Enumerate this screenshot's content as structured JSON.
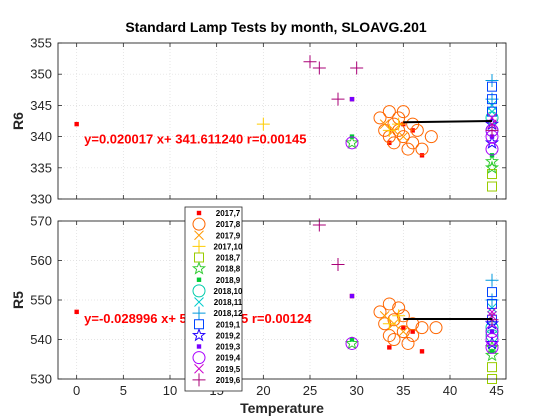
{
  "chart_data": [
    {
      "type": "scatter",
      "title": "Standard Lamp Tests by month, SLOAVG.201",
      "ylabel": "R6",
      "xlabel": "",
      "xlim": [
        -2,
        46
      ],
      "ylim": [
        330,
        355
      ],
      "xticks": [],
      "yticks": [
        "330",
        "335",
        "340",
        "345",
        "350",
        "355"
      ],
      "grid": true,
      "annotation": "y=0.020017 x+ 341.611240 r=0.00145",
      "fit_line": {
        "x": [
          35,
          44.5
        ],
        "y": [
          342.3,
          342.5
        ]
      },
      "series": [
        {
          "name": "2017,7",
          "x": [
            0,
            29.5,
            33.5,
            35,
            36,
            37
          ],
          "y": [
            342,
            346,
            339,
            342,
            341,
            337
          ]
        },
        {
          "name": "2017,8",
          "x": [
            32.5,
            33,
            33.5,
            33.5,
            34,
            34,
            34.5,
            34.5,
            35,
            35,
            35.5,
            36,
            36,
            36.5,
            37,
            38
          ],
          "y": [
            343,
            341,
            340,
            344,
            342,
            339,
            343,
            341,
            340,
            344,
            338,
            342,
            339,
            341,
            338,
            340
          ]
        },
        {
          "name": "2017,9",
          "x": [
            33,
            34,
            35
          ],
          "y": [
            342,
            341,
            340
          ]
        },
        {
          "name": "2017,10",
          "x": [
            20,
            33.5,
            34.5
          ],
          "y": [
            342,
            341,
            342
          ]
        },
        {
          "name": "2018,7",
          "x": [
            44.5,
            44.5
          ],
          "y": [
            332,
            334
          ]
        },
        {
          "name": "2018,8",
          "x": [
            29.5,
            44.5,
            44.5
          ],
          "y": [
            339,
            335,
            336
          ]
        },
        {
          "name": "2018,9",
          "x": [
            29.5,
            44.5
          ],
          "y": [
            340,
            337
          ]
        },
        {
          "name": "2018,10",
          "x": [
            44.5,
            44.5
          ],
          "y": [
            341,
            343
          ]
        },
        {
          "name": "2018,11",
          "x": [
            44.5,
            44.5
          ],
          "y": [
            344,
            345
          ]
        },
        {
          "name": "2018,12",
          "x": [
            44.5,
            44.5
          ],
          "y": [
            346,
            349
          ]
        },
        {
          "name": "2019,1",
          "x": [
            44.5,
            44.5,
            44.5
          ],
          "y": [
            344,
            346,
            348
          ]
        },
        {
          "name": "2019,2",
          "x": [
            44.5,
            44.5
          ],
          "y": [
            342,
            339
          ]
        },
        {
          "name": "2019,3",
          "x": [
            29.5,
            44.5
          ],
          "y": [
            346,
            340
          ]
        },
        {
          "name": "2019,4",
          "x": [
            29.5,
            44.5,
            44.5,
            44.5
          ],
          "y": [
            339,
            338,
            341,
            340
          ]
        },
        {
          "name": "2019,5",
          "x": [
            44.5,
            44.5
          ],
          "y": [
            342,
            343
          ]
        },
        {
          "name": "2019,6",
          "x": [
            25,
            26,
            28,
            30,
            44.5
          ],
          "y": [
            352,
            351,
            346,
            351,
            341
          ]
        }
      ]
    },
    {
      "type": "scatter",
      "title": "",
      "ylabel": "R5",
      "xlabel": "Temperature",
      "xlim": [
        -2,
        46
      ],
      "ylim": [
        530,
        570
      ],
      "xticks": [
        "0",
        "5",
        "10",
        "15",
        "20",
        "25",
        "30",
        "35",
        "40",
        "45"
      ],
      "yticks": [
        "530",
        "540",
        "550",
        "560",
        "570"
      ],
      "grid": true,
      "annotation": "y=-0.028996 x+ 545.697685 r=0.00124",
      "fit_line": {
        "x": [
          35,
          44.5
        ],
        "y": [
          545.2,
          545.2
        ]
      },
      "series": [
        {
          "name": "2017,7",
          "x": [
            0,
            29.5,
            33.5,
            35,
            36,
            37
          ],
          "y": [
            547,
            551,
            538,
            543,
            542,
            537
          ]
        },
        {
          "name": "2017,8",
          "x": [
            32.5,
            33,
            33.5,
            33.5,
            34,
            34,
            34.5,
            35,
            35,
            35.5,
            36,
            36,
            37,
            38.5
          ],
          "y": [
            547,
            544,
            541,
            549,
            545,
            540,
            548,
            542,
            546,
            539,
            544,
            541,
            543,
            543
          ]
        },
        {
          "name": "2017,9",
          "x": [
            33,
            34,
            35
          ],
          "y": [
            546,
            544,
            542
          ]
        },
        {
          "name": "2017,10",
          "x": [
            33.5,
            34.5
          ],
          "y": [
            544,
            546
          ]
        },
        {
          "name": "2018,7",
          "x": [
            44.5,
            44.5
          ],
          "y": [
            530,
            533
          ]
        },
        {
          "name": "2018,8",
          "x": [
            29.5,
            44.5,
            44.5
          ],
          "y": [
            539,
            536,
            538
          ]
        },
        {
          "name": "2018,9",
          "x": [
            29.5,
            44.5
          ],
          "y": [
            540,
            537
          ]
        },
        {
          "name": "2018,10",
          "x": [
            44.5,
            44.5
          ],
          "y": [
            541,
            543
          ]
        },
        {
          "name": "2018,11",
          "x": [
            44.5,
            44.5
          ],
          "y": [
            546,
            548
          ]
        },
        {
          "name": "2018,12",
          "x": [
            44.5,
            44.5
          ],
          "y": [
            550,
            555
          ]
        },
        {
          "name": "2019,1",
          "x": [
            44.5,
            44.5,
            44.5
          ],
          "y": [
            545,
            549,
            552
          ]
        },
        {
          "name": "2019,2",
          "x": [
            44.5,
            44.5
          ],
          "y": [
            544,
            539
          ]
        },
        {
          "name": "2019,3",
          "x": [
            29.5,
            44.5
          ],
          "y": [
            551,
            542
          ]
        },
        {
          "name": "2019,4",
          "x": [
            29.5,
            44.5,
            44.5,
            44.5
          ],
          "y": [
            539,
            538,
            540,
            542
          ]
        },
        {
          "name": "2019,5",
          "x": [
            44.5,
            44.5
          ],
          "y": [
            546,
            547
          ]
        },
        {
          "name": "2019,6",
          "x": [
            26,
            28,
            44.5
          ],
          "y": [
            569,
            559,
            545
          ]
        }
      ]
    }
  ],
  "legend": {
    "placement": "overlay-lower-left",
    "entries": [
      {
        "label": "2017,7",
        "marker": "square",
        "color": "#ff0000"
      },
      {
        "label": "2017,8",
        "marker": "circle",
        "color": "#ff6600"
      },
      {
        "label": "2017,9",
        "marker": "x",
        "color": "#ff9900"
      },
      {
        "label": "2017,10",
        "marker": "plus",
        "color": "#ffcc00"
      },
      {
        "label": "2018,7",
        "marker": "square-open",
        "color": "#99cc00"
      },
      {
        "label": "2018,8",
        "marker": "star",
        "color": "#33cc33"
      },
      {
        "label": "2018,9",
        "marker": "square",
        "color": "#00cc33"
      },
      {
        "label": "2018,10",
        "marker": "circle",
        "color": "#00ccaa"
      },
      {
        "label": "2018,11",
        "marker": "x",
        "color": "#00cccc"
      },
      {
        "label": "2018,12",
        "marker": "plus",
        "color": "#0099dd"
      },
      {
        "label": "2019,1",
        "marker": "square-open",
        "color": "#0044ff"
      },
      {
        "label": "2019,2",
        "marker": "star",
        "color": "#2200ff"
      },
      {
        "label": "2019,3",
        "marker": "square",
        "color": "#7700ff"
      },
      {
        "label": "2019,4",
        "marker": "circle",
        "color": "#aa00ff"
      },
      {
        "label": "2019,5",
        "marker": "x",
        "color": "#cc00cc"
      },
      {
        "label": "2019,6",
        "marker": "plus",
        "color": "#aa0077"
      }
    ]
  },
  "colors": {
    "axis": "#262626",
    "grid": "#dcdcdc",
    "fit_text": "#ff0000",
    "fit_line": "#000000"
  }
}
